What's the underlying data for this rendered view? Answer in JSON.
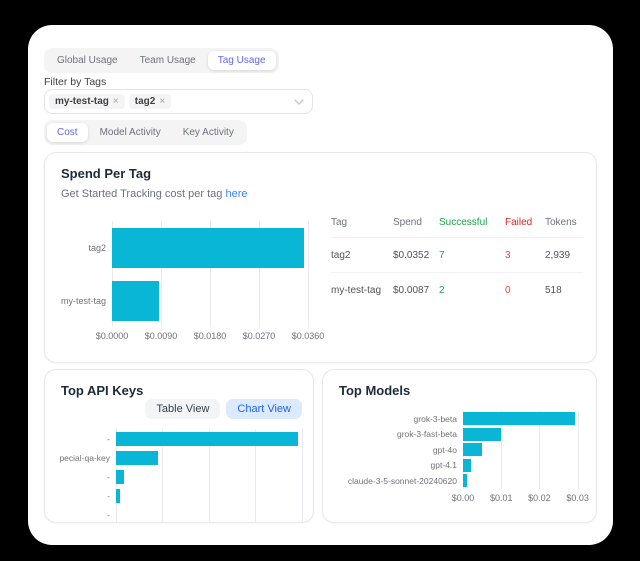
{
  "colors": {
    "background": "#000000",
    "card": "#ffffff",
    "bar": "#0ab6d5",
    "accent_purple": "#6366f1",
    "link_blue": "#3b82f6",
    "button_blue_bg": "#dbeafe",
    "button_blue_text": "#2563eb",
    "green": "#16a34a",
    "red": "#dc2626",
    "panel_border": "#e5e7eb"
  },
  "usage_tabs": [
    {
      "label": "Global Usage",
      "active": false
    },
    {
      "label": "Team Usage",
      "active": false
    },
    {
      "label": "Tag Usage",
      "active": true
    }
  ],
  "filter": {
    "label": "Filter by Tags",
    "tags": [
      "my-test-tag",
      "tag2"
    ],
    "remove_icon": "×"
  },
  "view_tabs": [
    {
      "label": "Cost",
      "active": true
    },
    {
      "label": "Model Activity",
      "active": false
    },
    {
      "label": "Key Activity",
      "active": false
    }
  ],
  "spend_per_tag": {
    "title": "Spend Per Tag",
    "subtitle_text": "Get Started Tracking cost per tag",
    "subtitle_link": "here",
    "table": {
      "headers": [
        {
          "label": "Tag",
          "accent": "plain"
        },
        {
          "label": "Spend",
          "accent": "plain"
        },
        {
          "label": "Successful",
          "accent": "green"
        },
        {
          "label": "Failed",
          "accent": "red"
        },
        {
          "label": "Tokens",
          "accent": "plain"
        }
      ],
      "rows": [
        {
          "cells": [
            {
              "text": "tag2",
              "accent": "plain"
            },
            {
              "text": "$0.0352",
              "accent": "plain"
            },
            {
              "text": "7",
              "accent": "green"
            },
            {
              "text": "3",
              "accent": "red"
            },
            {
              "text": "2,939",
              "accent": "plain"
            }
          ]
        },
        {
          "cells": [
            {
              "text": "my-test-tag",
              "accent": "plain"
            },
            {
              "text": "$0.0087",
              "accent": "plain"
            },
            {
              "text": "2",
              "accent": "green"
            },
            {
              "text": "0",
              "accent": "red"
            },
            {
              "text": "518",
              "accent": "plain"
            }
          ]
        }
      ]
    }
  },
  "top_api_keys": {
    "title": "Top API Keys",
    "table_view_label": "Table View",
    "chart_view_label": "Chart View",
    "active_button": "Chart View"
  },
  "top_models": {
    "title": "Top Models"
  },
  "chart_data": [
    {
      "name": "spend-per-tag",
      "type": "bar",
      "orientation": "horizontal",
      "title": "Spend Per Tag",
      "categories": [
        "tag2",
        "my-test-tag"
      ],
      "values": [
        0.0352,
        0.0087
      ],
      "xlim": [
        0,
        0.036
      ],
      "ticks": [
        {
          "label": "$0.0000",
          "value": 0
        },
        {
          "label": "$0.0090",
          "value": 0.009
        },
        {
          "label": "$0.0180",
          "value": 0.018
        },
        {
          "label": "$0.0270",
          "value": 0.027
        },
        {
          "label": "$0.0360",
          "value": 0.036
        }
      ],
      "grid": true,
      "legend": false
    },
    {
      "name": "top-api-keys",
      "type": "bar",
      "orientation": "horizontal",
      "title": "Top API Keys",
      "categories": [
        "-",
        "pecial-qa-key",
        "-",
        "-",
        "-"
      ],
      "values": [
        0.0352,
        0.0081,
        0.0016,
        0.0008,
        0
      ],
      "xlim": [
        0,
        0.0368
      ],
      "ticks": [
        {
          "value": 0
        },
        {
          "value": 0.009
        },
        {
          "value": 0.018
        },
        {
          "value": 0.027
        },
        {
          "value": 0.036
        }
      ],
      "note": "x-axis tick labels clipped out of view; values estimated from bar lengths",
      "grid": true,
      "legend": false
    },
    {
      "name": "top-models",
      "type": "bar",
      "orientation": "horizontal",
      "title": "Top Models",
      "categories": [
        "grok-3-beta",
        "grok-3-fast-beta",
        "gpt-4o",
        "gpt-4.1",
        "claude-3-5-sonnet-20240620"
      ],
      "values": [
        0.0293,
        0.01,
        0.005,
        0.0022,
        0.001
      ],
      "xlim": [
        0,
        0.0335
      ],
      "ticks": [
        {
          "label": "$0.00",
          "value": 0
        },
        {
          "label": "$0.01",
          "value": 0.01
        },
        {
          "label": "$0.02",
          "value": 0.02
        },
        {
          "label": "$0.03",
          "value": 0.03
        }
      ],
      "grid": true,
      "legend": false
    }
  ]
}
